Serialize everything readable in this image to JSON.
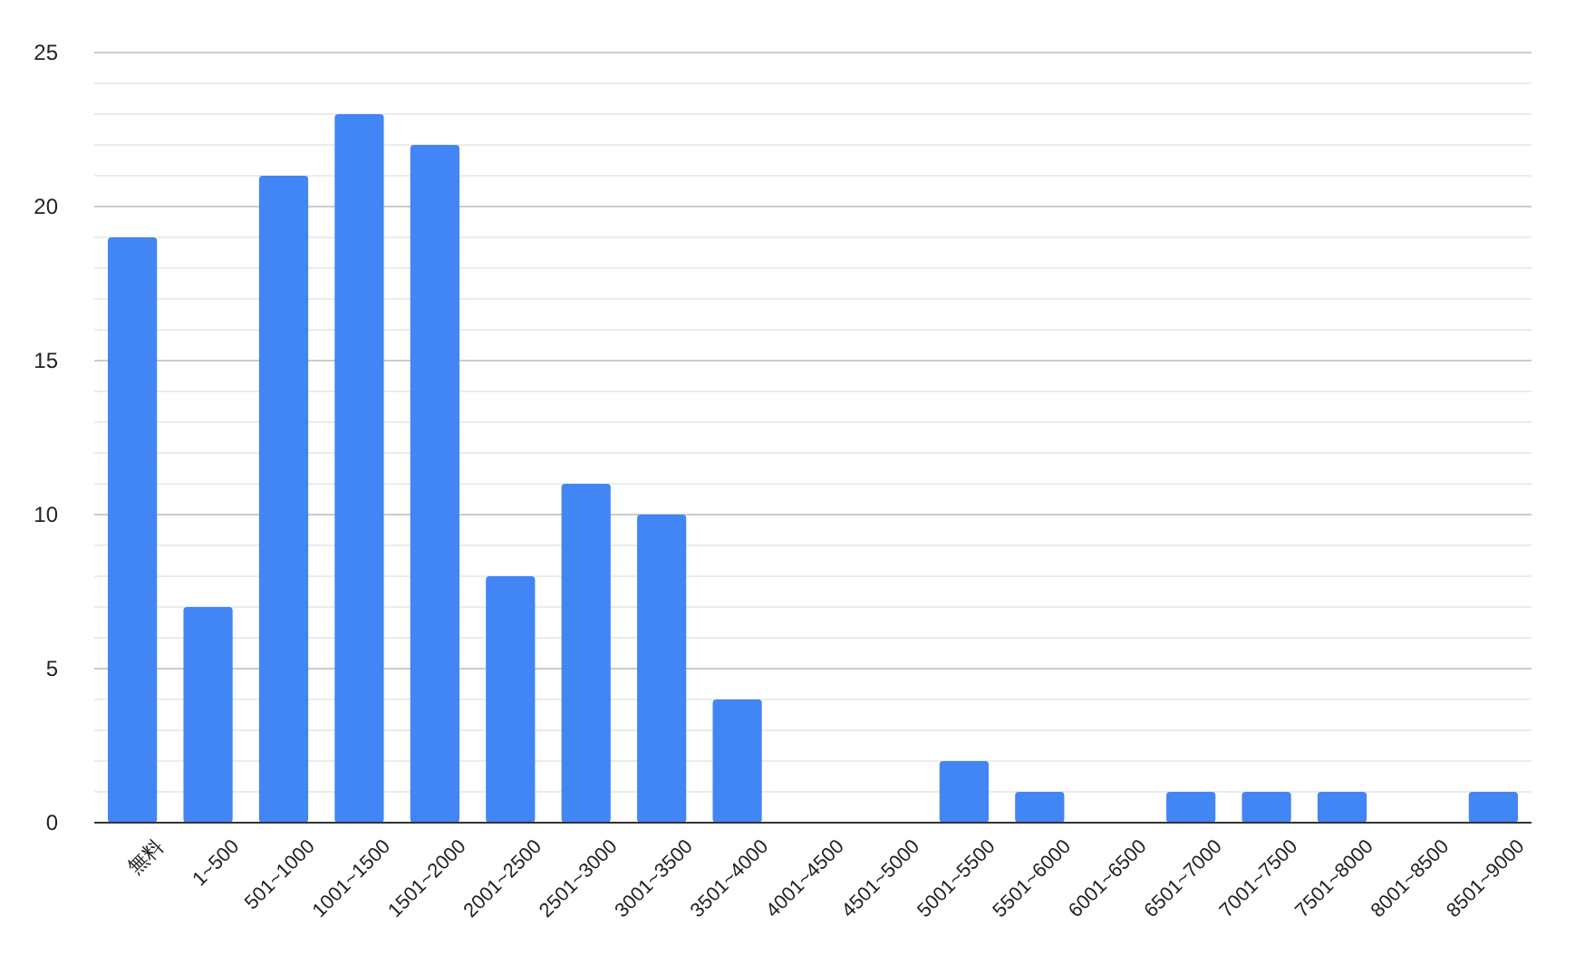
{
  "chart_data": {
    "type": "bar",
    "categories": [
      "無料",
      "1~500",
      "501~1000",
      "1001~1500",
      "1501~2000",
      "2001~2500",
      "2501~3000",
      "3001~3500",
      "3501~4000",
      "4001~4500",
      "4501~5000",
      "5001~5500",
      "5501~6000",
      "6001~6500",
      "6501~7000",
      "7001~7500",
      "7501~8000",
      "8001~8500",
      "8501~9000"
    ],
    "values": [
      19,
      7,
      21,
      23,
      22,
      8,
      11,
      10,
      4,
      0,
      0,
      2,
      1,
      0,
      1,
      1,
      1,
      0,
      1
    ],
    "color": "#4285f4",
    "ylim": [
      0,
      25
    ],
    "yticks": [
      0,
      {
        "value": 1,
        "label": null
      },
      {
        "value": 2,
        "label": null
      },
      {
        "value": 3,
        "label": null
      },
      {
        "value": 4,
        "label": null
      },
      5,
      {
        "value": 6,
        "label": null
      },
      {
        "value": 7,
        "label": null
      },
      {
        "value": 8,
        "label": null
      },
      {
        "value": 9,
        "label": null
      },
      10,
      {
        "value": 11,
        "label": null
      },
      {
        "value": 12,
        "label": null
      },
      {
        "value": 13,
        "label": null
      },
      {
        "value": 14,
        "label": null
      },
      15,
      {
        "value": 16,
        "label": null
      },
      {
        "value": 17,
        "label": null
      },
      {
        "value": 18,
        "label": null
      },
      {
        "value": 19,
        "label": null
      },
      20,
      {
        "value": 21,
        "label": null
      },
      {
        "value": 22,
        "label": null
      },
      {
        "value": 23,
        "label": null
      },
      {
        "value": 24,
        "label": null
      },
      25
    ],
    "grid": true
  }
}
